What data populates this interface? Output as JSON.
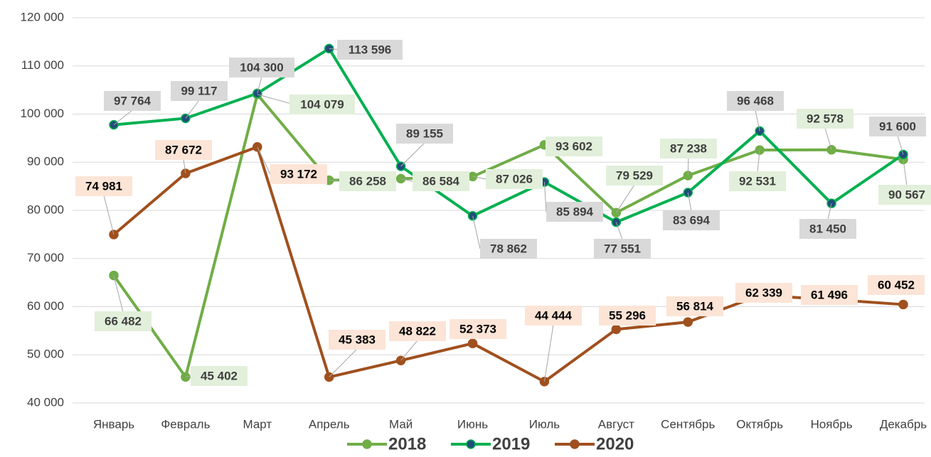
{
  "chart_data": {
    "type": "line",
    "categories": [
      "Январь",
      "Февраль",
      "Март",
      "Апрель",
      "Май",
      "Июнь",
      "Июль",
      "Август",
      "Сентябрь",
      "Октябрь",
      "Ноябрь",
      "Декабрь"
    ],
    "series": [
      {
        "name": "2018",
        "color": "#70ad47",
        "marker_color": "#70ad47",
        "label_bg": "#e2efda",
        "values": [
          66482,
          45402,
          104079,
          86258,
          86584,
          87026,
          93602,
          79529,
          87238,
          92531,
          92578,
          90567
        ],
        "value_labels": [
          "66 482",
          "45 402",
          "104 079",
          "86 258",
          "86 584",
          "87 026",
          "93 602",
          "79 529",
          "87 238",
          "92 531",
          "92 578",
          "90 567"
        ]
      },
      {
        "name": "2019",
        "color": "#00b050",
        "marker_color": "#1f4e79",
        "label_bg": "#d9d9d9",
        "values": [
          97764,
          99117,
          104300,
          113596,
          89155,
          78862,
          85894,
          77551,
          83694,
          96468,
          81450,
          91600
        ],
        "value_labels": [
          "97 764",
          "99 117",
          "104 300",
          "113 596",
          "89 155",
          "78 862",
          "85 894",
          "77 551",
          "83 694",
          "96 468",
          "81 450",
          "91 600"
        ]
      },
      {
        "name": "2020",
        "color": "#a0501e",
        "marker_color": "#a0501e",
        "label_bg": "#fce4d6",
        "values": [
          74981,
          87672,
          93172,
          45383,
          48822,
          52373,
          44444,
          55296,
          56814,
          62339,
          61496,
          60452
        ],
        "value_labels": [
          "74 981",
          "87 672",
          "93 172",
          "45 383",
          "48 822",
          "52 373",
          "44 444",
          "55 296",
          "56 814",
          "62 339",
          "61 496",
          "60 452"
        ]
      }
    ],
    "ylim": [
      40000,
      120000
    ],
    "yticks": [
      {
        "value": 40000,
        "label": "40 000"
      },
      {
        "value": 50000,
        "label": "50 000"
      },
      {
        "value": 60000,
        "label": "60 000"
      },
      {
        "value": 70000,
        "label": "70 000"
      },
      {
        "value": 80000,
        "label": "80 000"
      },
      {
        "value": 90000,
        "label": "90 000"
      },
      {
        "value": 100000,
        "label": "100 000"
      },
      {
        "value": 110000,
        "label": "110 000"
      },
      {
        "value": 120000,
        "label": "120 000"
      }
    ],
    "grid": true,
    "legend": "bottom"
  }
}
